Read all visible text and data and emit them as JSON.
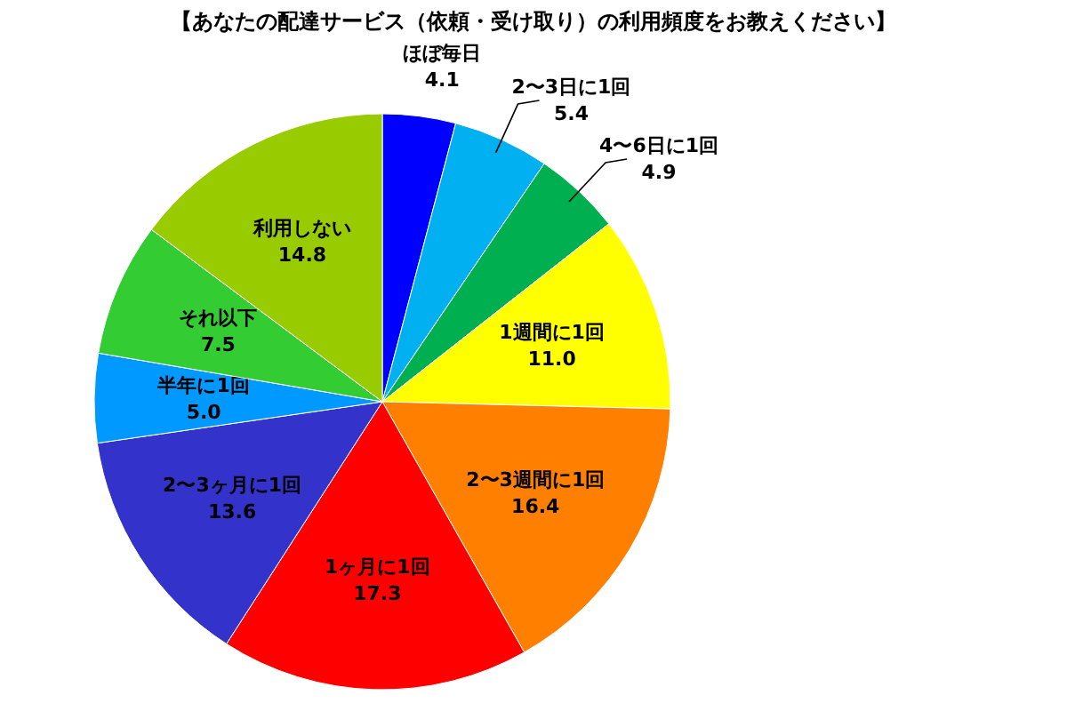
{
  "chart_data": {
    "type": "pie",
    "title": "【あなたの配達サービス（依頼・受け取り）の利用頻度をお教えください】",
    "categories": [
      "ほぼ毎日",
      "2〜3日に1回",
      "4〜6日に1回",
      "1週間に1回",
      "2〜3週間に1回",
      "1ヶ月に1回",
      "2〜3ヶ月に1回",
      "半年に1回",
      "それ以下",
      "利用しない"
    ],
    "values": [
      4.1,
      5.4,
      4.9,
      11.0,
      16.4,
      17.3,
      13.6,
      5.0,
      7.5,
      14.8
    ],
    "colors": [
      "#0000ff",
      "#00b0f0",
      "#00b050",
      "#ffff00",
      "#ff8000",
      "#ff0000",
      "#3333cc",
      "#0099ff",
      "#33cc33",
      "#99cc00"
    ],
    "value_labels": [
      "4.1",
      "5.4",
      "4.9",
      "11.0",
      "16.4",
      "17.3",
      "13.6",
      "5.0",
      "7.5",
      "14.8"
    ]
  }
}
